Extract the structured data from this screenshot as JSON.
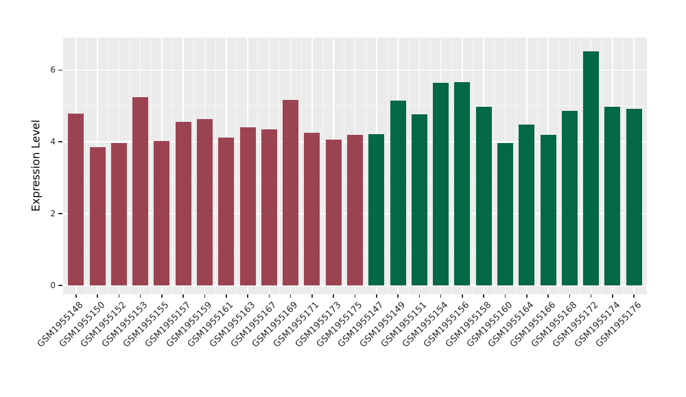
{
  "chart_data": {
    "type": "bar",
    "title": "",
    "xlabel": "",
    "ylabel": "Expression Level",
    "ylim": [
      0,
      6.9
    ],
    "yticks": [
      0,
      2,
      4,
      6
    ],
    "yticks_minor": [
      1,
      3,
      5
    ],
    "grid": "white major and minor gridlines on gray panel",
    "legend_position": "none",
    "categories": [
      "GSM1955148",
      "GSM1955150",
      "GSM1955152",
      "GSM1955153",
      "GSM1955155",
      "GSM1955157",
      "GSM1955159",
      "GSM1955161",
      "GSM1955163",
      "GSM1955167",
      "GSM1955169",
      "GSM1955171",
      "GSM1955173",
      "GSM1955175",
      "GSM1955147",
      "GSM1955149",
      "GSM1955151",
      "GSM1955154",
      "GSM1955156",
      "GSM1955158",
      "GSM1955160",
      "GSM1955164",
      "GSM1955166",
      "GSM1955168",
      "GSM1955172",
      "GSM1955174",
      "GSM1955176"
    ],
    "values": [
      4.79,
      3.85,
      3.97,
      5.24,
      4.03,
      4.56,
      4.64,
      4.11,
      4.4,
      4.35,
      5.16,
      4.26,
      4.07,
      4.19,
      4.22,
      5.15,
      4.77,
      5.64,
      5.66,
      4.97,
      3.97,
      4.48,
      4.19,
      4.87,
      6.53,
      4.98,
      4.91
    ],
    "groups": [
      "red",
      "red",
      "red",
      "red",
      "red",
      "red",
      "red",
      "red",
      "red",
      "red",
      "red",
      "red",
      "red",
      "red",
      "green",
      "green",
      "green",
      "green",
      "green",
      "green",
      "green",
      "green",
      "green",
      "green",
      "green",
      "green",
      "green"
    ],
    "palette": {
      "red": "#9B4351",
      "green": "#026845"
    }
  },
  "style": {
    "page_bg": "#FFFFFF",
    "panel_bg": "#EBEBEB",
    "grid_major": "#FFFFFF",
    "grid_minor": "#FFFFFF",
    "tick_mark": "#333333",
    "tick_label": "#262626",
    "axis_title": "#000000"
  }
}
